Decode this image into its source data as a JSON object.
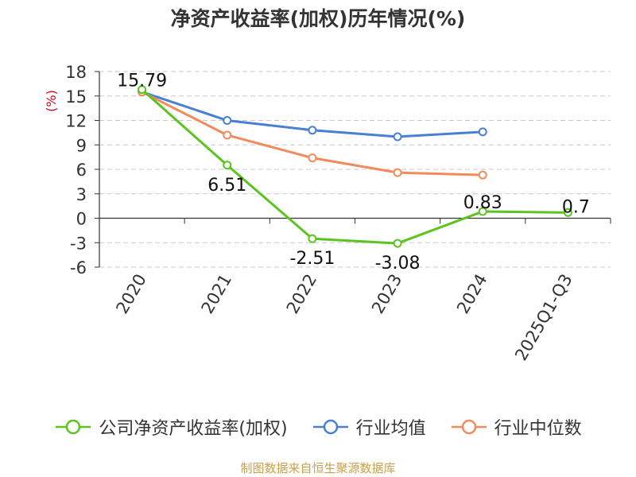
{
  "chart_data": {
    "type": "line",
    "title": "净资产收益率(加权)历年情况(%)",
    "ylabel": "(%)",
    "xlabel": "",
    "categories": [
      "2020",
      "2021",
      "2022",
      "2023",
      "2024",
      "2025Q1-Q3"
    ],
    "ylim": [
      -6,
      18
    ],
    "yticks": [
      18,
      15,
      12,
      9,
      6,
      3,
      0,
      -3,
      -6
    ],
    "grid": true,
    "legend_position": "bottom",
    "series": [
      {
        "name": "公司净资产收益率(加权)",
        "color": "#5bc41f",
        "values": [
          15.79,
          6.51,
          -2.51,
          -3.08,
          0.83,
          0.7
        ],
        "labels": [
          "15.79",
          "6.51",
          "-2.51",
          "-3.08",
          "0.83",
          "0.7"
        ]
      },
      {
        "name": "行业均值",
        "color": "#4a7fd6",
        "values": [
          15.5,
          12.0,
          10.8,
          10.0,
          10.6,
          null
        ]
      },
      {
        "name": "行业中位数",
        "color": "#f28b5b",
        "values": [
          15.5,
          10.2,
          7.4,
          5.6,
          5.3,
          null
        ]
      }
    ]
  },
  "footer": {
    "source": "制图数据来自恒生聚源数据库"
  }
}
